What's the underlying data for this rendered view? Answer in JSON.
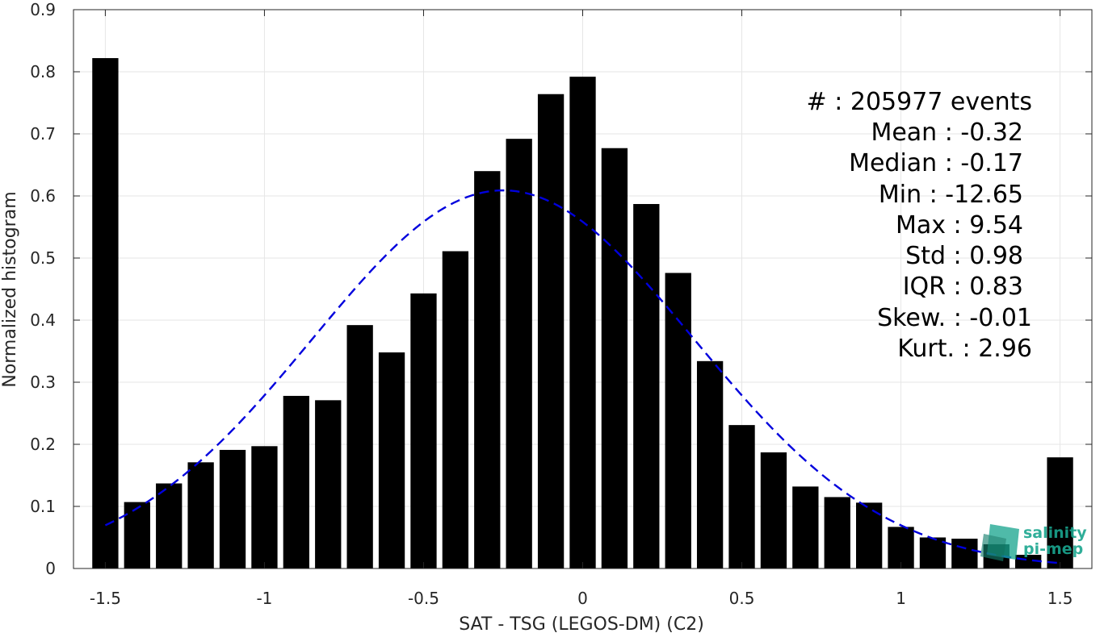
{
  "chart_data": {
    "type": "bar",
    "xlabel": "SAT - TSG (LEGOS-DM) (C2)",
    "ylabel": "Normalized histogram",
    "xlim": [
      -1.6,
      1.6
    ],
    "ylim": [
      0,
      0.9
    ],
    "xticks": [
      -1.5,
      -1,
      -0.5,
      0,
      0.5,
      1,
      1.5
    ],
    "xtick_labels": [
      "-1.5",
      "-1",
      "-0.5",
      "0",
      "0.5",
      "1",
      "1.5"
    ],
    "yticks": [
      0,
      0.1,
      0.2,
      0.3,
      0.4,
      0.5,
      0.6,
      0.7,
      0.8,
      0.9
    ],
    "ytick_labels": [
      "0",
      "0.1",
      "0.2",
      "0.3",
      "0.4",
      "0.5",
      "0.6",
      "0.7",
      "0.8",
      "0.9"
    ],
    "grid": true,
    "bar_color": "#000000",
    "bins": [
      -1.5,
      -1.4,
      -1.3,
      -1.2,
      -1.1,
      -1.0,
      -0.9,
      -0.8,
      -0.7,
      -0.6,
      -0.5,
      -0.4,
      -0.3,
      -0.2,
      -0.1,
      0.0,
      0.1,
      0.2,
      0.3,
      0.4,
      0.5,
      0.6,
      0.7,
      0.8,
      0.9,
      1.0,
      1.1,
      1.2,
      1.3,
      1.4,
      1.5
    ],
    "values": [
      0.822,
      0.107,
      0.137,
      0.171,
      0.191,
      0.197,
      0.278,
      0.271,
      0.392,
      0.348,
      0.443,
      0.511,
      0.64,
      0.692,
      0.764,
      0.792,
      0.677,
      0.587,
      0.476,
      0.334,
      0.231,
      0.187,
      0.132,
      0.115,
      0.106,
      0.067,
      0.05,
      0.048,
      0.039,
      0.022,
      0.179
    ],
    "fit_curve": {
      "style": "dashed",
      "color": "#0000dd",
      "mean": -0.25,
      "std": 0.6,
      "peak": 0.609,
      "x_range": [
        -1.5,
        1.5
      ]
    },
    "annotations": [
      "#  : 205977 events",
      "Mean : -0.32",
      "Median : -0.17",
      "Min : -12.65",
      "Max : 9.54",
      "Std : 0.98",
      "IQR : 0.83",
      "Skew. : -0.01",
      "Kurt. : 2.96"
    ]
  },
  "logo": {
    "line1": "salinity",
    "line2": "pi-mep",
    "color": "#1aa68f"
  }
}
